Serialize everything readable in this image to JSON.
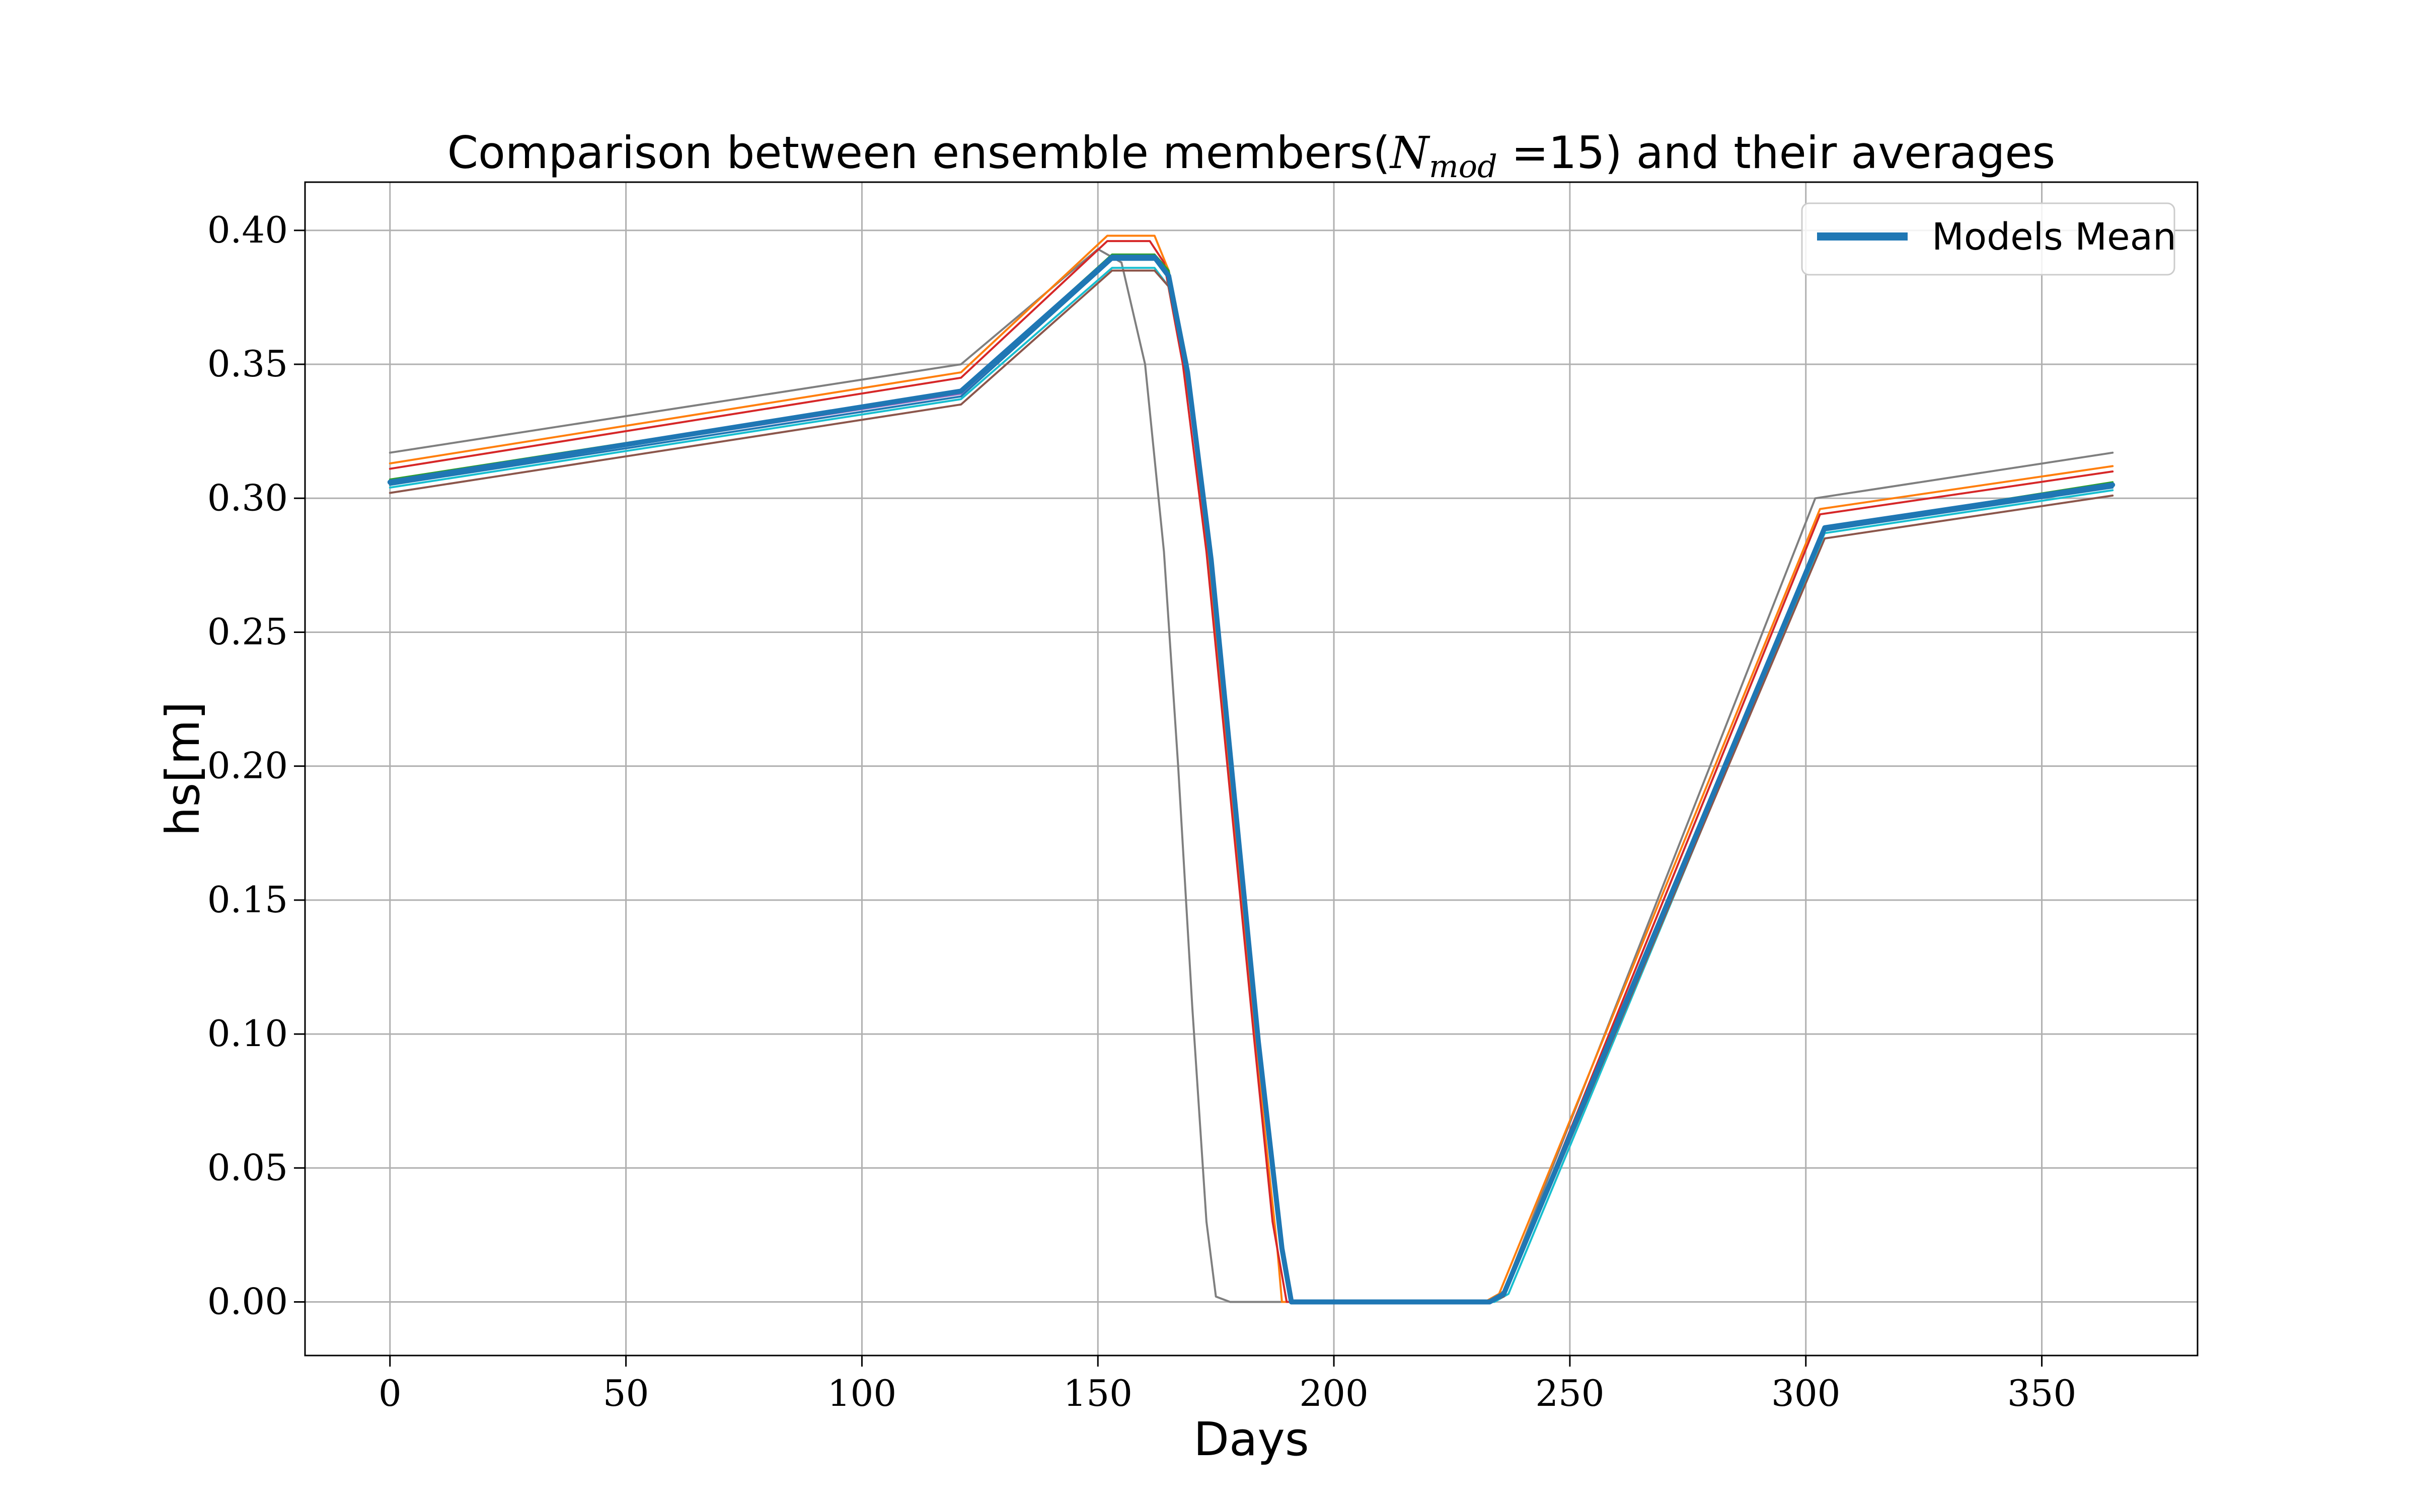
{
  "chart_data": {
    "type": "line",
    "title": {
      "prefix": "Comparison between ensemble members(",
      "math_base": "N",
      "math_sub": "mod",
      "suffix": " =15) and their averages"
    },
    "xlabel": "Days",
    "ylabel": "hs[m]",
    "xlim": [
      -18,
      383
    ],
    "ylim": [
      -0.02,
      0.418
    ],
    "xticks": [
      0,
      50,
      100,
      150,
      200,
      250,
      300,
      350
    ],
    "xtick_labels": [
      "0",
      "50",
      "100",
      "150",
      "200",
      "250",
      "300",
      "350"
    ],
    "yticks": [
      0.0,
      0.05,
      0.1,
      0.15,
      0.2,
      0.25,
      0.3,
      0.35,
      0.4
    ],
    "ytick_labels": [
      "0.00",
      "0.05",
      "0.10",
      "0.15",
      "0.20",
      "0.25",
      "0.30",
      "0.35",
      "0.40"
    ],
    "grid": true,
    "legend": {
      "placement": "top-right",
      "entries": [
        "Models Mean"
      ]
    },
    "series": [
      {
        "color": "#7f7f7f",
        "x": [
          0,
          121,
          150,
          155,
          160,
          164,
          167,
          170,
          173,
          175,
          178,
          232,
          236,
          302,
          365
        ],
        "y": [
          0.317,
          0.35,
          0.393,
          0.388,
          0.35,
          0.28,
          0.2,
          0.11,
          0.03,
          0.002,
          0.0,
          0.0,
          0.004,
          0.3,
          0.317
        ]
      },
      {
        "color": "#ff7f0e",
        "x": [
          0,
          121,
          152,
          162,
          165,
          170,
          175,
          180,
          185,
          188,
          189,
          232,
          235,
          303,
          365
        ],
        "y": [
          0.313,
          0.347,
          0.398,
          0.398,
          0.385,
          0.33,
          0.25,
          0.16,
          0.07,
          0.02,
          0.0,
          0.0,
          0.003,
          0.296,
          0.312
        ]
      },
      {
        "color": "#d62728",
        "x": [
          0,
          121,
          152,
          161,
          164,
          168,
          173,
          178,
          183,
          187,
          190,
          191,
          233,
          236,
          303,
          365
        ],
        "y": [
          0.311,
          0.345,
          0.396,
          0.396,
          0.388,
          0.35,
          0.28,
          0.19,
          0.1,
          0.03,
          0.0,
          0.0,
          0.0,
          0.003,
          0.294,
          0.31
        ]
      },
      {
        "color": "#9467bd",
        "x": [
          0,
          121,
          153,
          162,
          165,
          169,
          174,
          179,
          184,
          189,
          191,
          192,
          233,
          236,
          304,
          365
        ],
        "y": [
          0.306,
          0.339,
          0.39,
          0.39,
          0.384,
          0.35,
          0.28,
          0.19,
          0.1,
          0.02,
          0.0,
          0.0,
          0.0,
          0.003,
          0.289,
          0.305
        ]
      },
      {
        "color": "#1f77b4",
        "x": [
          0,
          121,
          153,
          162,
          165,
          169,
          174,
          179,
          184,
          189,
          191,
          192,
          233,
          236,
          304,
          365
        ],
        "y": [
          0.305,
          0.338,
          0.389,
          0.389,
          0.382,
          0.348,
          0.278,
          0.188,
          0.098,
          0.02,
          0.0,
          0.0,
          0.0,
          0.002,
          0.288,
          0.304
        ]
      },
      {
        "color": "#2ca02c",
        "x": [
          0,
          121,
          153,
          162,
          165,
          169,
          174,
          179,
          184,
          189,
          191,
          192,
          233,
          236,
          304,
          365
        ],
        "y": [
          0.307,
          0.34,
          0.391,
          0.391,
          0.385,
          0.35,
          0.28,
          0.19,
          0.1,
          0.02,
          0.0,
          0.0,
          0.0,
          0.003,
          0.289,
          0.306
        ]
      },
      {
        "color": "#17becf",
        "x": [
          0,
          121,
          153,
          162,
          165,
          169,
          174,
          179,
          184,
          189,
          191,
          192,
          234,
          237,
          304,
          365
        ],
        "y": [
          0.304,
          0.337,
          0.386,
          0.386,
          0.379,
          0.345,
          0.275,
          0.185,
          0.095,
          0.02,
          0.0,
          0.0,
          0.0,
          0.003,
          0.287,
          0.303
        ]
      },
      {
        "color": "#8c564b",
        "x": [
          0,
          121,
          153,
          162,
          165,
          169,
          174,
          179,
          184,
          189,
          191,
          192,
          233,
          236,
          304,
          365
        ],
        "y": [
          0.302,
          0.335,
          0.385,
          0.385,
          0.379,
          0.345,
          0.275,
          0.185,
          0.095,
          0.02,
          0.0,
          0.0,
          0.0,
          0.002,
          0.285,
          0.301
        ]
      },
      {
        "name": "Models Mean",
        "color": "#1f77b4",
        "thick": true,
        "x": [
          0,
          121,
          153,
          162,
          165,
          169,
          174,
          179,
          184,
          189,
          191,
          192,
          233,
          236,
          304,
          365
        ],
        "y": [
          0.306,
          0.34,
          0.39,
          0.39,
          0.383,
          0.347,
          0.277,
          0.187,
          0.097,
          0.02,
          0.0,
          0.0,
          0.0,
          0.003,
          0.289,
          0.305
        ]
      }
    ]
  }
}
